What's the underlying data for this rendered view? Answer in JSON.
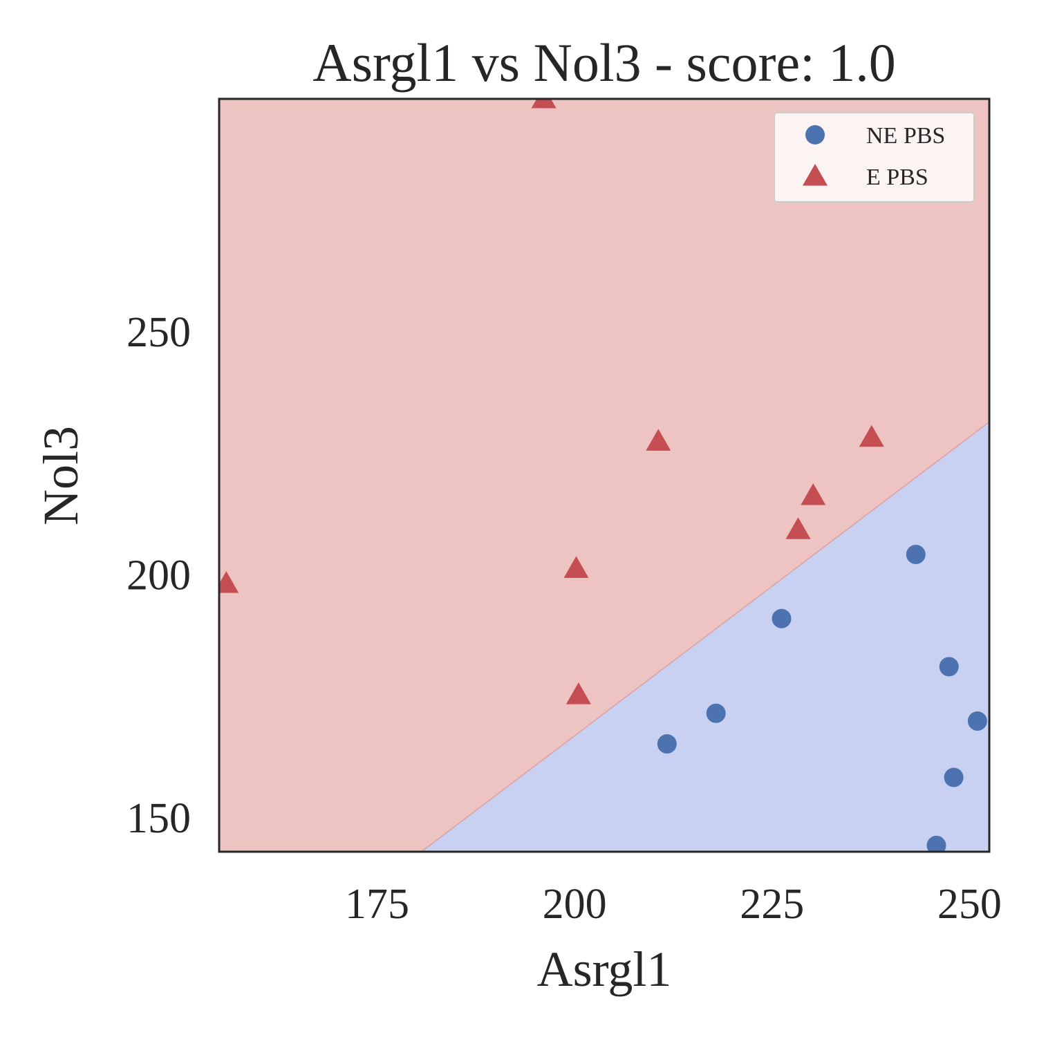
{
  "chart_data": {
    "type": "scatter",
    "title": "Asrgl1 vs Nol3 - score: 1.0",
    "xlabel": "Asrgl1",
    "ylabel": "Nol3",
    "xlim": [
      155,
      252.5
    ],
    "ylim": [
      143,
      298
    ],
    "xticks": [
      175,
      200,
      225,
      250
    ],
    "yticks": [
      150,
      200,
      250
    ],
    "grid": false,
    "legend_position": "top-right",
    "decision_boundary": {
      "points": [
        [
          180.6,
          143
        ],
        [
          252.5,
          231.5
        ]
      ],
      "upper_left_class": "E PBS",
      "lower_right_class": "NE PBS"
    },
    "series": [
      {
        "name": "NE PBS",
        "marker": "circle",
        "color": "#4c72b0",
        "region_color": "#c8d1f2",
        "points": [
          [
            211.7,
            165.2
          ],
          [
            217.9,
            171.5
          ],
          [
            226.2,
            191.0
          ],
          [
            243.2,
            204.2
          ],
          [
            247.4,
            181.1
          ],
          [
            248.0,
            158.3
          ],
          [
            251.0,
            169.9
          ],
          [
            245.8,
            144.3
          ]
        ]
      },
      {
        "name": "E PBS",
        "marker": "triangle",
        "color": "#c44e52",
        "region_color": "#eec4c3",
        "points": [
          [
            196.1,
            298.0
          ],
          [
            155.9,
            198.2
          ],
          [
            200.2,
            201.3
          ],
          [
            200.5,
            175.3
          ],
          [
            210.6,
            227.5
          ],
          [
            228.3,
            209.3
          ],
          [
            230.2,
            216.3
          ],
          [
            237.6,
            228.3
          ]
        ]
      }
    ]
  }
}
